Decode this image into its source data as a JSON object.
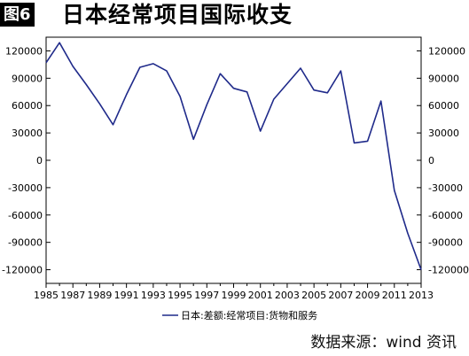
{
  "figure": {
    "badge": "图6",
    "title": "日本经常项目国际收支"
  },
  "source": "数据来源：wind 资讯",
  "colors": {
    "line": "#1f2a8a",
    "axis": "#000000"
  },
  "chart_data": {
    "type": "line",
    "title": "",
    "xlabel": "",
    "ylabel": "",
    "xlim": [
      1985,
      2013
    ],
    "ylim": [
      -135000,
      135000
    ],
    "grid": false,
    "legend_position": "bottom-center",
    "y_axes": "both",
    "x_ticks": [
      1985,
      1987,
      1989,
      1991,
      1993,
      1995,
      1997,
      1999,
      2001,
      2003,
      2005,
      2007,
      2009,
      2011,
      2013
    ],
    "y_ticks": [
      120000,
      90000,
      60000,
      30000,
      0,
      -30000,
      -60000,
      -90000,
      -120000
    ],
    "series": [
      {
        "name": "日本:差额:经常项目:货物和服务",
        "color": "#1f2a8a",
        "points": [
          [
            1985,
            107000
          ],
          [
            1986,
            129000
          ],
          [
            1987,
            103000
          ],
          [
            1988,
            83000
          ],
          [
            1989,
            62000
          ],
          [
            1990,
            39000
          ],
          [
            1991,
            72000
          ],
          [
            1992,
            102000
          ],
          [
            1993,
            106000
          ],
          [
            1994,
            98000
          ],
          [
            1995,
            70000
          ],
          [
            1996,
            23000
          ],
          [
            1997,
            61000
          ],
          [
            1998,
            95000
          ],
          [
            1999,
            79000
          ],
          [
            2000,
            75000
          ],
          [
            2001,
            32000
          ],
          [
            2002,
            67000
          ],
          [
            2003,
            84000
          ],
          [
            2004,
            101000
          ],
          [
            2005,
            77000
          ],
          [
            2006,
            74000
          ],
          [
            2007,
            98000
          ],
          [
            2008,
            19000
          ],
          [
            2009,
            21000
          ],
          [
            2010,
            65000
          ],
          [
            2011,
            -33000
          ],
          [
            2012,
            -80000
          ],
          [
            2013,
            -120000
          ]
        ]
      }
    ]
  }
}
